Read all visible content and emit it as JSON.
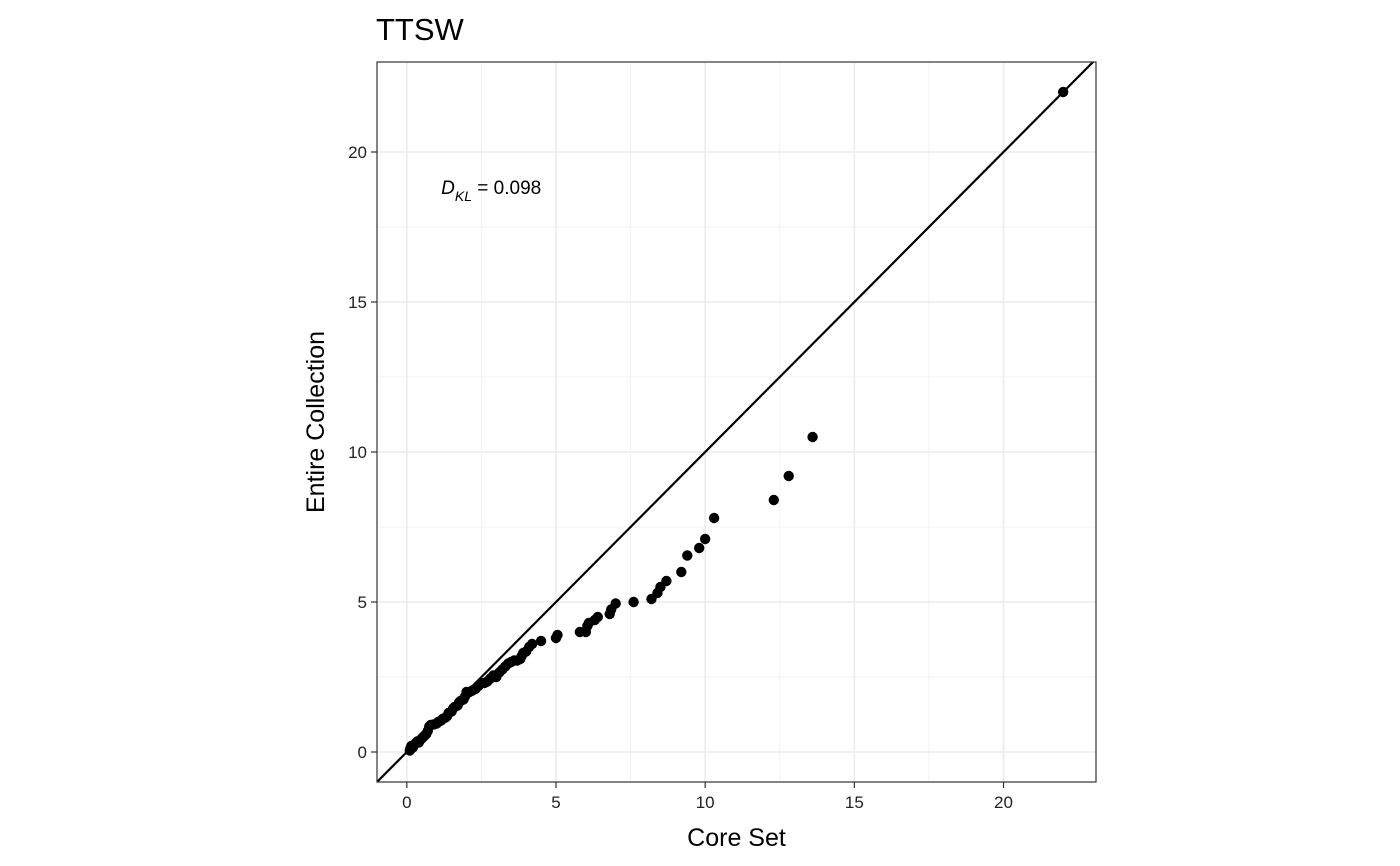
{
  "chart_data": {
    "type": "scatter",
    "title": "TTSW",
    "xlabel": "Core Set",
    "ylabel": "Entire Collection",
    "xlim": [
      -1,
      23.1
    ],
    "ylim": [
      -1,
      23.0
    ],
    "x_ticks": [
      0,
      5,
      10,
      15,
      20
    ],
    "y_ticks": [
      0,
      5,
      10,
      15,
      20
    ],
    "grid": true,
    "reference_line": "y = x",
    "annotation": {
      "symbol": "D",
      "subscript": "KL",
      "text": " = 0.098",
      "x": 1.15,
      "y": 18.8
    },
    "series": [
      {
        "points": [
          [
            0.1,
            0.05
          ],
          [
            0.12,
            0.12
          ],
          [
            0.15,
            0.2
          ],
          [
            0.2,
            0.15
          ],
          [
            0.25,
            0.25
          ],
          [
            0.3,
            0.3
          ],
          [
            0.35,
            0.35
          ],
          [
            0.4,
            0.32
          ],
          [
            0.45,
            0.4
          ],
          [
            0.5,
            0.45
          ],
          [
            0.55,
            0.5
          ],
          [
            0.6,
            0.55
          ],
          [
            0.65,
            0.6
          ],
          [
            0.7,
            0.7
          ],
          [
            0.75,
            0.85
          ],
          [
            0.8,
            0.9
          ],
          [
            0.9,
            0.92
          ],
          [
            1.0,
            0.95
          ],
          [
            1.05,
            1.0
          ],
          [
            1.15,
            1.05
          ],
          [
            1.2,
            1.1
          ],
          [
            1.3,
            1.15
          ],
          [
            1.35,
            1.2
          ],
          [
            1.4,
            1.3
          ],
          [
            1.5,
            1.35
          ],
          [
            1.55,
            1.45
          ],
          [
            1.6,
            1.5
          ],
          [
            1.7,
            1.55
          ],
          [
            1.75,
            1.65
          ],
          [
            1.8,
            1.7
          ],
          [
            1.9,
            1.75
          ],
          [
            1.95,
            1.85
          ],
          [
            2.0,
            2.0
          ],
          [
            2.1,
            2.0
          ],
          [
            2.2,
            2.05
          ],
          [
            2.3,
            2.1
          ],
          [
            2.4,
            2.2
          ],
          [
            2.5,
            2.3
          ],
          [
            2.6,
            2.3
          ],
          [
            2.7,
            2.35
          ],
          [
            2.8,
            2.45
          ],
          [
            2.9,
            2.55
          ],
          [
            3.0,
            2.5
          ],
          [
            3.1,
            2.65
          ],
          [
            3.2,
            2.75
          ],
          [
            3.3,
            2.85
          ],
          [
            3.4,
            2.95
          ],
          [
            3.5,
            3.0
          ],
          [
            3.6,
            3.05
          ],
          [
            3.7,
            3.05
          ],
          [
            3.8,
            3.1
          ],
          [
            3.85,
            3.2
          ],
          [
            3.9,
            3.3
          ],
          [
            4.0,
            3.35
          ],
          [
            4.1,
            3.5
          ],
          [
            4.2,
            3.6
          ],
          [
            4.5,
            3.7
          ],
          [
            5.0,
            3.8
          ],
          [
            5.05,
            3.9
          ],
          [
            5.8,
            4.0
          ],
          [
            6.0,
            4.0
          ],
          [
            6.05,
            4.2
          ],
          [
            6.1,
            4.3
          ],
          [
            6.3,
            4.4
          ],
          [
            6.4,
            4.5
          ],
          [
            6.8,
            4.6
          ],
          [
            6.85,
            4.75
          ],
          [
            7.0,
            4.95
          ],
          [
            7.6,
            5.0
          ],
          [
            8.2,
            5.1
          ],
          [
            8.4,
            5.3
          ],
          [
            8.5,
            5.5
          ],
          [
            8.7,
            5.7
          ],
          [
            9.2,
            6.0
          ],
          [
            9.4,
            6.55
          ],
          [
            9.8,
            6.8
          ],
          [
            10.0,
            7.1
          ],
          [
            10.3,
            7.8
          ],
          [
            12.3,
            8.4
          ],
          [
            12.8,
            9.2
          ],
          [
            13.6,
            10.5
          ],
          [
            22.0,
            22.0
          ]
        ]
      }
    ]
  }
}
